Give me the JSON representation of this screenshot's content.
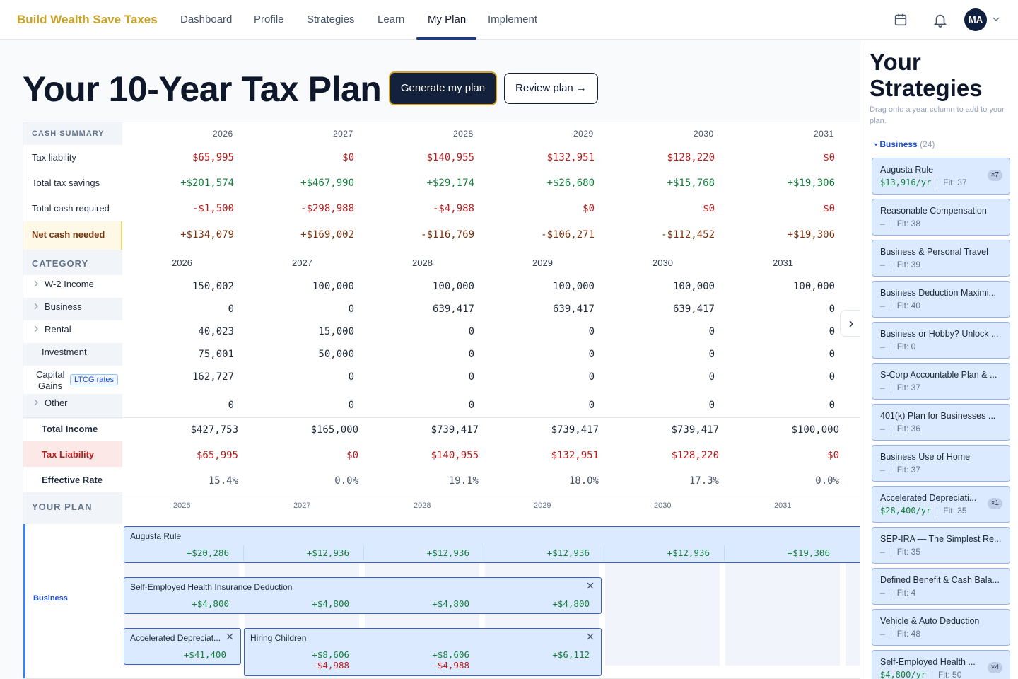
{
  "nav": {
    "brand": "Build Wealth Save Taxes",
    "links": [
      "Dashboard",
      "Profile",
      "Strategies",
      "Learn",
      "My Plan",
      "Implement"
    ],
    "active": "My Plan",
    "avatar_initials": "MA"
  },
  "header": {
    "title": "Your 10-Year Tax Plan",
    "generate_label": "Generate my plan",
    "review_label": "Review plan →"
  },
  "years": [
    "2026",
    "2027",
    "2028",
    "2029",
    "2030",
    "2031"
  ],
  "cash_summary": {
    "heading": "CASH SUMMARY",
    "rows": [
      {
        "label": "Tax liability",
        "tone": "red",
        "values": [
          "$65,995",
          "$0",
          "$140,955",
          "$132,951",
          "$128,220",
          "$0"
        ]
      },
      {
        "label": "Total tax savings",
        "tone": "green",
        "values": [
          "+$201,574",
          "+$467,990",
          "+$29,174",
          "+$26,680",
          "+$15,768",
          "+$19,306"
        ]
      },
      {
        "label": "Total cash required",
        "tone": "red",
        "values": [
          "-$1,500",
          "-$298,988",
          "-$4,988",
          "$0",
          "$0",
          "$0"
        ]
      },
      {
        "label": "Net cash needed",
        "tone": "brown",
        "values": [
          "+$134,079",
          "+$169,002",
          "-$116,769",
          "-$106,271",
          "-$112,452",
          "+$19,306"
        ]
      }
    ]
  },
  "category": {
    "heading": "CATEGORY",
    "rows": [
      {
        "label": "W-2 Income",
        "values": [
          "150,002",
          "100,000",
          "100,000",
          "100,000",
          "100,000",
          "100,000"
        ]
      },
      {
        "label": "Business",
        "values": [
          "0",
          "0",
          "639,417",
          "639,417",
          "639,417",
          "0"
        ]
      },
      {
        "label": "Rental",
        "values": [
          "40,023",
          "15,000",
          "0",
          "0",
          "0",
          "0"
        ]
      },
      {
        "label": "Investment",
        "values": [
          "75,001",
          "50,000",
          "0",
          "0",
          "0",
          "0"
        ]
      },
      {
        "label": "Capital Gains",
        "label_line1": "Capital",
        "label_line2": "Gains",
        "badge": "LTCG rates",
        "values": [
          "162,727",
          "0",
          "0",
          "0",
          "0",
          "0"
        ]
      },
      {
        "label": "Other",
        "values": [
          "0",
          "0",
          "0",
          "0",
          "0",
          "0"
        ]
      }
    ]
  },
  "totals": {
    "rows": [
      {
        "label": "Total Income",
        "tone": "dark",
        "values": [
          "$427,753",
          "$165,000",
          "$739,417",
          "$739,417",
          "$739,417",
          "$100,000"
        ]
      },
      {
        "label": "Tax Liability",
        "tone": "red",
        "values": [
          "$65,995",
          "$0",
          "$140,955",
          "$132,951",
          "$128,220",
          "$0"
        ]
      },
      {
        "label": "Effective Rate",
        "tone": "gray",
        "values": [
          "15.4%",
          "0.0%",
          "19.1%",
          "18.0%",
          "17.3%",
          "0.0%"
        ]
      }
    ]
  },
  "plan": {
    "heading": "YOUR PLAN",
    "group_label": "Business",
    "bars": [
      {
        "title": "Augusta Rule",
        "values": [
          "+$20,286",
          "+$12,936",
          "+$12,936",
          "+$12,936",
          "+$12,936",
          "+$19,306"
        ]
      },
      {
        "title": "Self-Employed Health Insurance Deduction",
        "values": [
          "+$4,800",
          "+$4,800",
          "+$4,800",
          "+$4,800"
        ]
      },
      {
        "title": "Accelerated Depreciat...",
        "values": [
          "+$41,400"
        ]
      },
      {
        "title": "Hiring Children",
        "values": [
          "+$8,606",
          "+$8,606",
          "+$6,112"
        ],
        "costs": [
          "-$4,988",
          "-$4,988"
        ]
      }
    ]
  },
  "sidebar": {
    "title_line1": "Your",
    "title_line2": "Strategies",
    "subtitle": "Drag onto a year column to add to your plan.",
    "group": {
      "name": "Business",
      "count": "(24)"
    },
    "cards": [
      {
        "name": "Augusta Rule",
        "amount": "$13,916/yr",
        "fit": "Fit: 37",
        "badge": "×7"
      },
      {
        "name": "Reasonable Compensation",
        "amount": "–",
        "fit": "Fit: 38"
      },
      {
        "name": "Business & Personal Travel",
        "amount": "–",
        "fit": "Fit: 39"
      },
      {
        "name": "Business Deduction Maximi...",
        "amount": "–",
        "fit": "Fit: 40"
      },
      {
        "name": "Business or Hobby? Unlock ...",
        "amount": "–",
        "fit": "Fit: 0"
      },
      {
        "name": "S-Corp Accountable Plan & ...",
        "amount": "–",
        "fit": "Fit: 37"
      },
      {
        "name": "401(k) Plan for Businesses ...",
        "amount": "–",
        "fit": "Fit: 36"
      },
      {
        "name": "Business Use of Home",
        "amount": "–",
        "fit": "Fit: 37"
      },
      {
        "name": "Accelerated Depreciati...",
        "amount": "$28,400/yr",
        "fit": "Fit: 35",
        "badge": "×1"
      },
      {
        "name": "SEP-IRA — The Simplest Re...",
        "amount": "–",
        "fit": "Fit: 35"
      },
      {
        "name": "Defined Benefit & Cash Bala...",
        "amount": "–",
        "fit": "Fit: 4"
      },
      {
        "name": "Vehicle & Auto Deduction",
        "amount": "–",
        "fit": "Fit: 48"
      },
      {
        "name": "Self-Employed Health ...",
        "amount": "$4,800/yr",
        "fit": "Fit: 50",
        "badge": "×4"
      }
    ]
  }
}
